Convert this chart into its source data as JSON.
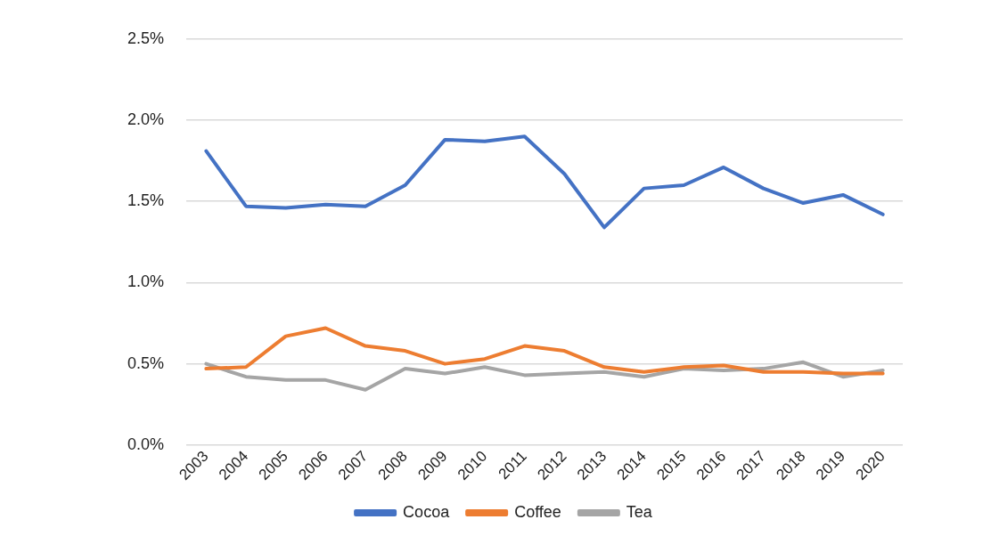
{
  "chart_data": {
    "type": "line",
    "categories": [
      "2003",
      "2004",
      "2005",
      "2006",
      "2007",
      "2008",
      "2009",
      "2010",
      "2011",
      "2012",
      "2013",
      "2014",
      "2015",
      "2016",
      "2017",
      "2018",
      "2019",
      "2020"
    ],
    "series": [
      {
        "name": "Cocoa",
        "color": "#4472c4",
        "values": [
          1.81,
          1.47,
          1.46,
          1.48,
          1.47,
          1.6,
          1.88,
          1.87,
          1.9,
          1.67,
          1.34,
          1.58,
          1.6,
          1.71,
          1.58,
          1.49,
          1.54,
          1.42
        ]
      },
      {
        "name": "Coffee",
        "color": "#ed7d31",
        "values": [
          0.47,
          0.48,
          0.67,
          0.72,
          0.61,
          0.58,
          0.5,
          0.53,
          0.61,
          0.58,
          0.48,
          0.45,
          0.48,
          0.49,
          0.45,
          0.45,
          0.44,
          0.44
        ]
      },
      {
        "name": "Tea",
        "color": "#a5a5a5",
        "values": [
          0.5,
          0.42,
          0.4,
          0.4,
          0.34,
          0.47,
          0.44,
          0.48,
          0.43,
          0.44,
          0.45,
          0.42,
          0.47,
          0.46,
          0.47,
          0.51,
          0.42,
          0.46
        ]
      }
    ],
    "ylim": [
      0,
      2.5
    ],
    "yticks": [
      {
        "value": 0,
        "label": "0.0%"
      },
      {
        "value": 0.5,
        "label": "0.5%"
      },
      {
        "value": 1,
        "label": "1.0%"
      },
      {
        "value": 1.5,
        "label": "1.5%"
      },
      {
        "value": 2,
        "label": "2.0%"
      },
      {
        "value": 2.5,
        "label": "2.5%"
      }
    ],
    "grid": "y",
    "legend": "bottom",
    "marker": "none",
    "line_style": "solid"
  }
}
